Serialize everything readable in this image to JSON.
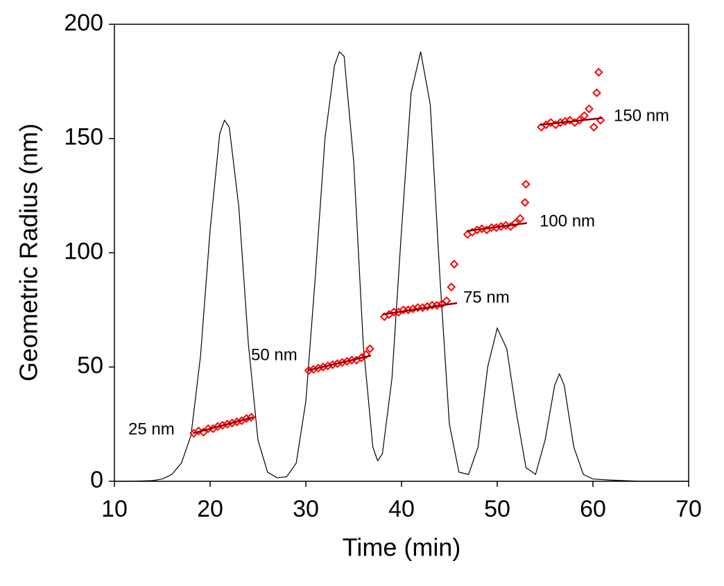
{
  "chart_data": {
    "type": "line",
    "x_label": "Time (min)",
    "y_label": "Geometric Radius (nm)",
    "xlim": [
      10,
      70
    ],
    "xticks": [
      10,
      20,
      30,
      40,
      50,
      60,
      70
    ],
    "ylim": [
      0,
      200
    ],
    "yticks": [
      0,
      50,
      100,
      150,
      200
    ],
    "grid": false,
    "series": [
      {
        "type": "line",
        "color": "#000000",
        "x": [
          10,
          12,
          14,
          15,
          16,
          17,
          18,
          19,
          20,
          21,
          21.5,
          22,
          23,
          24,
          25,
          26,
          27,
          28,
          29,
          30,
          31,
          32,
          33,
          33.5,
          34,
          35,
          36,
          37,
          37.5,
          38,
          39,
          40,
          41,
          42,
          43,
          44,
          45,
          46,
          47,
          48,
          49,
          50,
          51,
          52,
          53,
          54,
          55,
          56,
          56.5,
          57,
          58,
          59,
          60,
          62,
          65,
          70
        ],
        "values": [
          0,
          0,
          0.3,
          1,
          3,
          8,
          20,
          55,
          110,
          152,
          158,
          155,
          120,
          60,
          18,
          4,
          1.5,
          2,
          8,
          35,
          90,
          150,
          182,
          188,
          186,
          140,
          60,
          15,
          9,
          12,
          45,
          110,
          170,
          188,
          165,
          90,
          25,
          4,
          3,
          15,
          50,
          67,
          58,
          30,
          6,
          3,
          18,
          42,
          47,
          42,
          15,
          3,
          1,
          0.5,
          0,
          0
        ]
      },
      {
        "type": "scatter",
        "color": "#ff0000",
        "x": [
          18.3,
          18.8,
          19.3,
          19.8,
          20.3,
          20.8,
          21.3,
          21.8,
          22.3,
          22.8,
          23.3,
          23.8,
          24.3
        ],
        "values": [
          21,
          22,
          21.5,
          23,
          23,
          24,
          24.5,
          25,
          25.5,
          26,
          26.5,
          27.5,
          28
        ]
      },
      {
        "type": "scatter",
        "color": "#ff0000",
        "x": [
          30.3,
          30.8,
          31.3,
          31.8,
          32.3,
          32.8,
          33.3,
          33.8,
          34.3,
          34.8,
          35.3,
          35.8,
          36.3,
          36.7
        ],
        "values": [
          48.5,
          49,
          49.5,
          50,
          50.5,
          51,
          51.5,
          52,
          52.5,
          53,
          53,
          54,
          55.5,
          58
        ]
      },
      {
        "type": "scatter",
        "color": "#ff0000",
        "x": [
          38.2,
          38.7,
          39.2,
          39.7,
          40.2,
          40.7,
          41.2,
          41.7,
          42.2,
          42.7,
          43.2,
          43.7,
          44.2,
          44.7,
          45.2,
          45.5
        ],
        "values": [
          72,
          73,
          74,
          74,
          75,
          75,
          75.5,
          76,
          76,
          76.5,
          77,
          77,
          77.5,
          79,
          85,
          95
        ]
      },
      {
        "type": "scatter",
        "color": "#ff0000",
        "x": [
          46.9,
          47.4,
          47.9,
          48.4,
          48.9,
          49.4,
          49.9,
          50.4,
          50.9,
          51.4,
          51.9,
          52.4,
          52.9,
          53
        ],
        "values": [
          108,
          109,
          110,
          110.5,
          110,
          111,
          111,
          111.5,
          112,
          111.5,
          113,
          115,
          122,
          130
        ]
      },
      {
        "type": "scatter",
        "color": "#ff0000",
        "x": [
          54.6,
          55.1,
          55.6,
          56.1,
          56.6,
          57.1,
          57.6,
          58.1,
          58.6,
          59.1,
          59.6,
          60.1,
          60.4,
          60.6,
          60.8
        ],
        "values": [
          155,
          156,
          157,
          156,
          157,
          157.5,
          158,
          157,
          158,
          160,
          163,
          155,
          170,
          179,
          158
        ]
      },
      {
        "type": "fit",
        "color": "#8b0000",
        "x": [
          18.2,
          24.5
        ],
        "values": [
          21,
          28
        ]
      },
      {
        "type": "fit",
        "color": "#8b0000",
        "x": [
          30.2,
          36.8
        ],
        "values": [
          48.5,
          55
        ]
      },
      {
        "type": "fit",
        "color": "#8b0000",
        "x": [
          38,
          45.8
        ],
        "values": [
          73,
          78
        ]
      },
      {
        "type": "fit",
        "color": "#8b0000",
        "x": [
          46.8,
          53.1
        ],
        "values": [
          109.5,
          113
        ]
      },
      {
        "type": "fit",
        "color": "#8b0000",
        "x": [
          54.5,
          61
        ],
        "values": [
          156,
          159
        ]
      }
    ],
    "annotations": [
      "25 nm",
      "50 nm",
      "75 nm",
      "100 nm",
      "150 nm"
    ]
  }
}
